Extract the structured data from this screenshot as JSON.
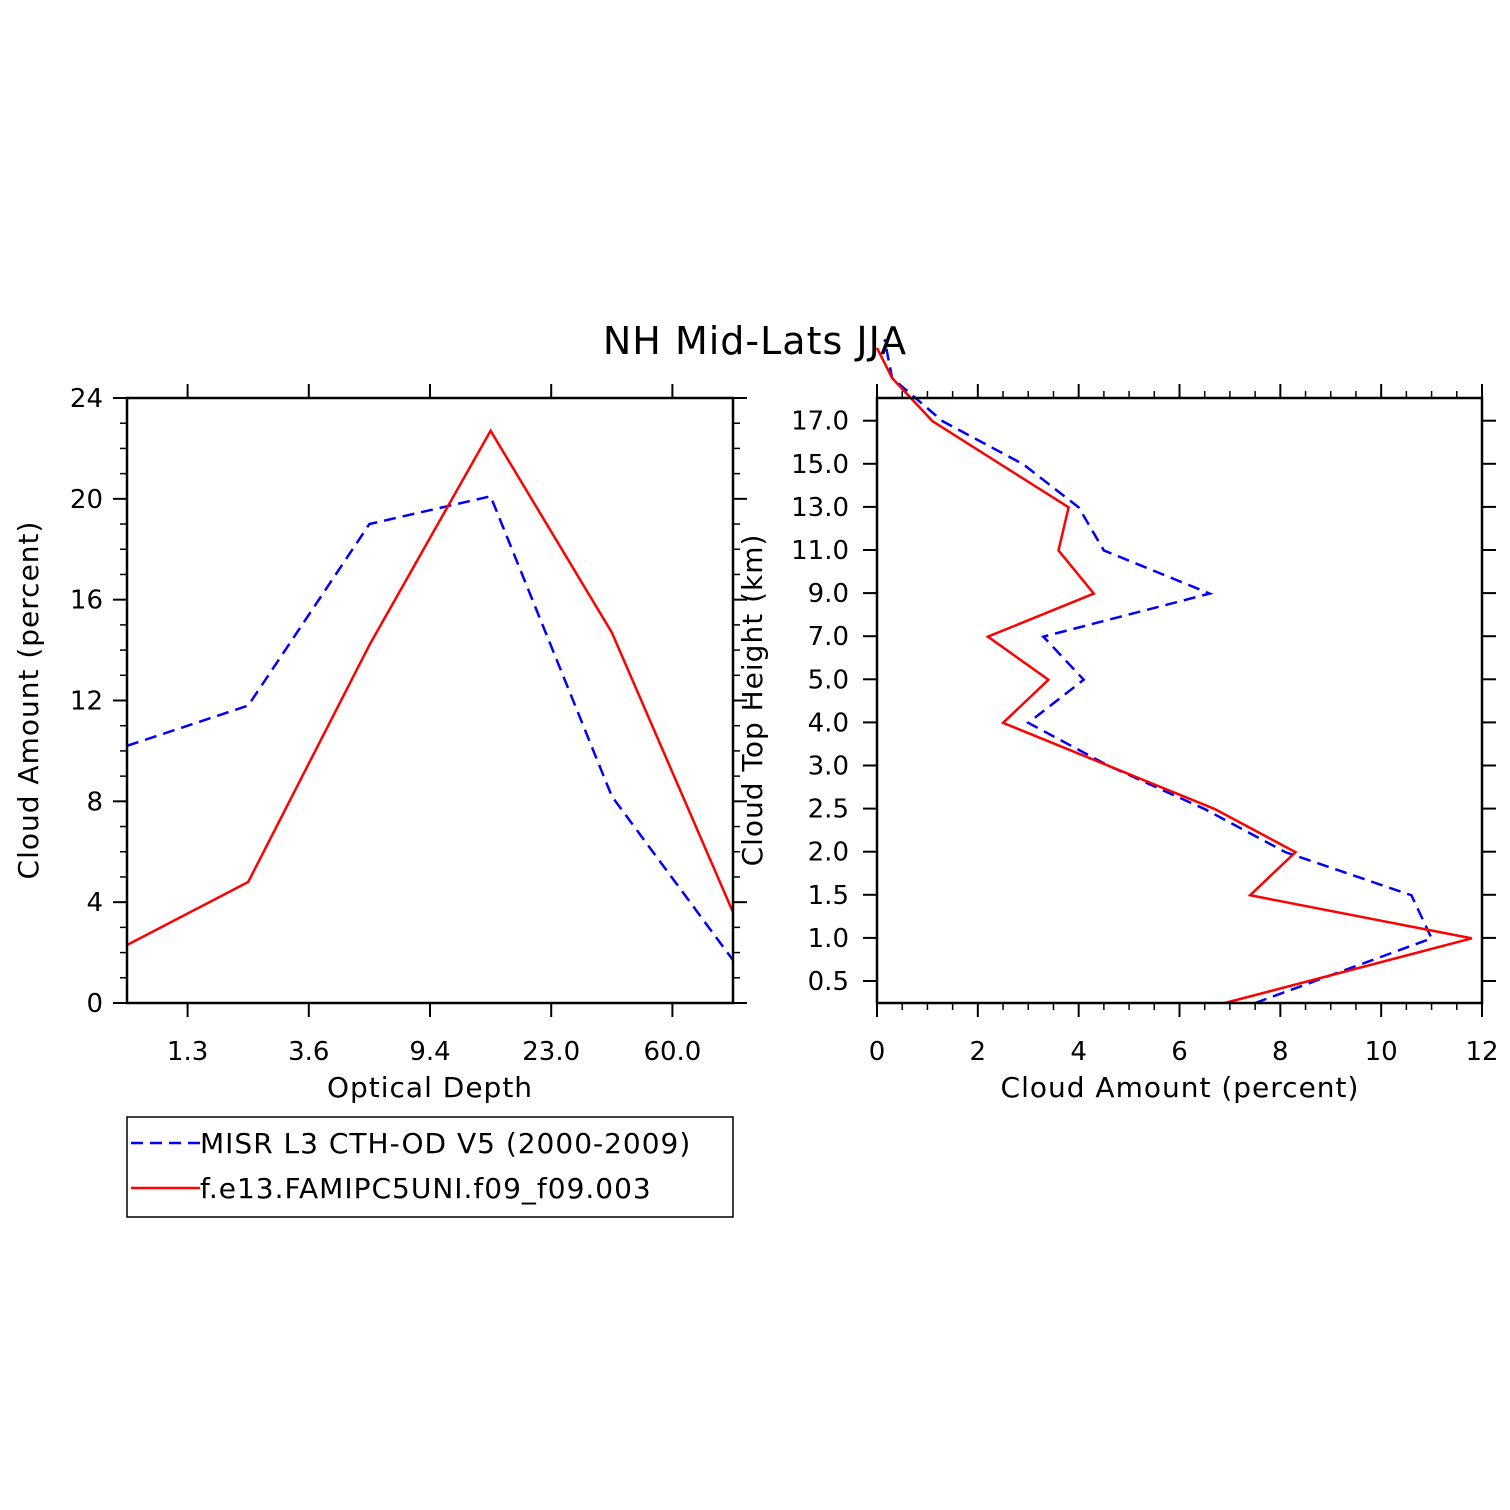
{
  "figure": {
    "title": "NH Mid-Lats JJA"
  },
  "chart_data": [
    {
      "type": "line",
      "xlabel": "Optical Depth",
      "ylabel": "Cloud Amount (percent)",
      "x_tick_labels": [
        "1.3",
        "3.6",
        "9.4",
        "23.0",
        "60.0"
      ],
      "y_tick_labels": [
        "0",
        "4",
        "8",
        "12",
        "16",
        "20",
        "24"
      ],
      "ylim": [
        0,
        24
      ],
      "x": [
        0,
        1,
        2,
        3,
        4,
        5
      ],
      "series": [
        {
          "name": "MISR L3 CTH-OD V5 (2000-2009)",
          "color": "#0000ff",
          "dash": "dashed",
          "values": [
            10.2,
            11.8,
            19.0,
            20.1,
            8.2,
            1.7
          ]
        },
        {
          "name": "f.e13.FAMIPC5UNI.f09_f09.003",
          "color": "#ff0000",
          "dash": "solid",
          "values": [
            2.3,
            4.8,
            14.2,
            22.7,
            14.7,
            3.6
          ]
        }
      ]
    },
    {
      "type": "line",
      "orientation": "horizontal",
      "xlabel": "Cloud Amount (percent)",
      "ylabel": "Cloud Top Height (km)",
      "x_tick_labels": [
        "0",
        "2",
        "4",
        "6",
        "8",
        "10",
        "12"
      ],
      "xlim": [
        0,
        12
      ],
      "y_tick_labels": [
        "0.5",
        "1.0",
        "1.5",
        "2.0",
        "2.5",
        "3.0",
        "4.0",
        "5.0",
        "7.0",
        "9.0",
        "11.0",
        "13.0",
        "15.0",
        "17.0"
      ],
      "series": [
        {
          "name": "MISR L3 CTH-OD V5 (2000-2009)",
          "color": "#0000ff",
          "dash": "dashed",
          "points": [
            [
              7.5,
              0.0
            ],
            [
              11.0,
              0.75
            ],
            [
              10.6,
              1.25
            ],
            [
              8.1,
              1.75
            ],
            [
              6.5,
              2.25
            ],
            [
              4.6,
              2.75
            ],
            [
              3.0,
              3.25
            ],
            [
              4.1,
              3.75
            ],
            [
              3.3,
              4.25
            ],
            [
              6.6,
              4.75
            ],
            [
              4.5,
              5.25
            ],
            [
              4.0,
              5.75
            ],
            [
              2.9,
              6.25
            ],
            [
              1.3,
              6.75
            ],
            [
              0.3,
              7.25
            ],
            [
              0.15,
              7.7
            ]
          ]
        },
        {
          "name": "f.e13.FAMIPC5UNI.f09_f09.003",
          "color": "#ff0000",
          "dash": "solid",
          "points": [
            [
              6.9,
              0.0
            ],
            [
              11.8,
              0.75
            ],
            [
              7.4,
              1.25
            ],
            [
              8.3,
              1.75
            ],
            [
              6.7,
              2.25
            ],
            [
              2.5,
              3.25
            ],
            [
              3.4,
              3.75
            ],
            [
              2.2,
              4.25
            ],
            [
              4.3,
              4.75
            ],
            [
              3.6,
              5.25
            ],
            [
              3.8,
              5.75
            ],
            [
              1.1,
              6.75
            ],
            [
              0.3,
              7.25
            ],
            [
              0.0,
              7.6
            ]
          ]
        }
      ]
    }
  ],
  "legend": {
    "entries": [
      {
        "label": "MISR L3 CTH-OD V5 (2000-2009)",
        "color": "#0000ff",
        "dash": "dashed"
      },
      {
        "label": "f.e13.FAMIPC5UNI.f09_f09.003",
        "color": "#ff0000",
        "dash": "solid"
      }
    ]
  }
}
